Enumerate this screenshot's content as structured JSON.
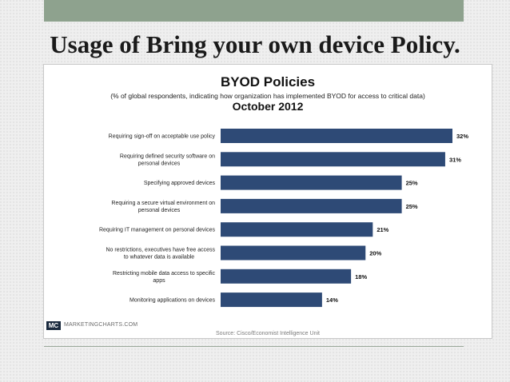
{
  "slide": {
    "title": "Usage of Bring your own device Policy."
  },
  "chart_data": {
    "type": "bar",
    "orientation": "horizontal",
    "title": "BYOD Policies",
    "subtitle": "(% of global respondents, indicating how organization has implemented BYOD for access to critical data)",
    "date": "October 2012",
    "categories": [
      "Requiring sign-off on acceptable use policy",
      "Requiring defined security software on personal devices",
      "Specifying approved devices",
      "Requiring a secure virtual environment on personal devices",
      "Requiring IT management on personal devices",
      "No restrictions, executives have free access to whatever data is available",
      "Restricting mobile data access to specific apps",
      "Monitoring applications on devices"
    ],
    "values": [
      32,
      31,
      25,
      25,
      21,
      20,
      18,
      14
    ],
    "value_labels": [
      "32%",
      "31%",
      "25%",
      "25%",
      "21%",
      "20%",
      "18%",
      "14%"
    ],
    "xlim": [
      0,
      32
    ],
    "bar_color": "#2e4a76",
    "grid": false
  },
  "footer": {
    "logo": "MC",
    "brand": "MARKETINGCHARTS.COM",
    "source": "Source: Cisco/Economist Intelligence Unit"
  },
  "colors": {
    "top_bar": "#8ea28e",
    "bar": "#2e4a76"
  }
}
